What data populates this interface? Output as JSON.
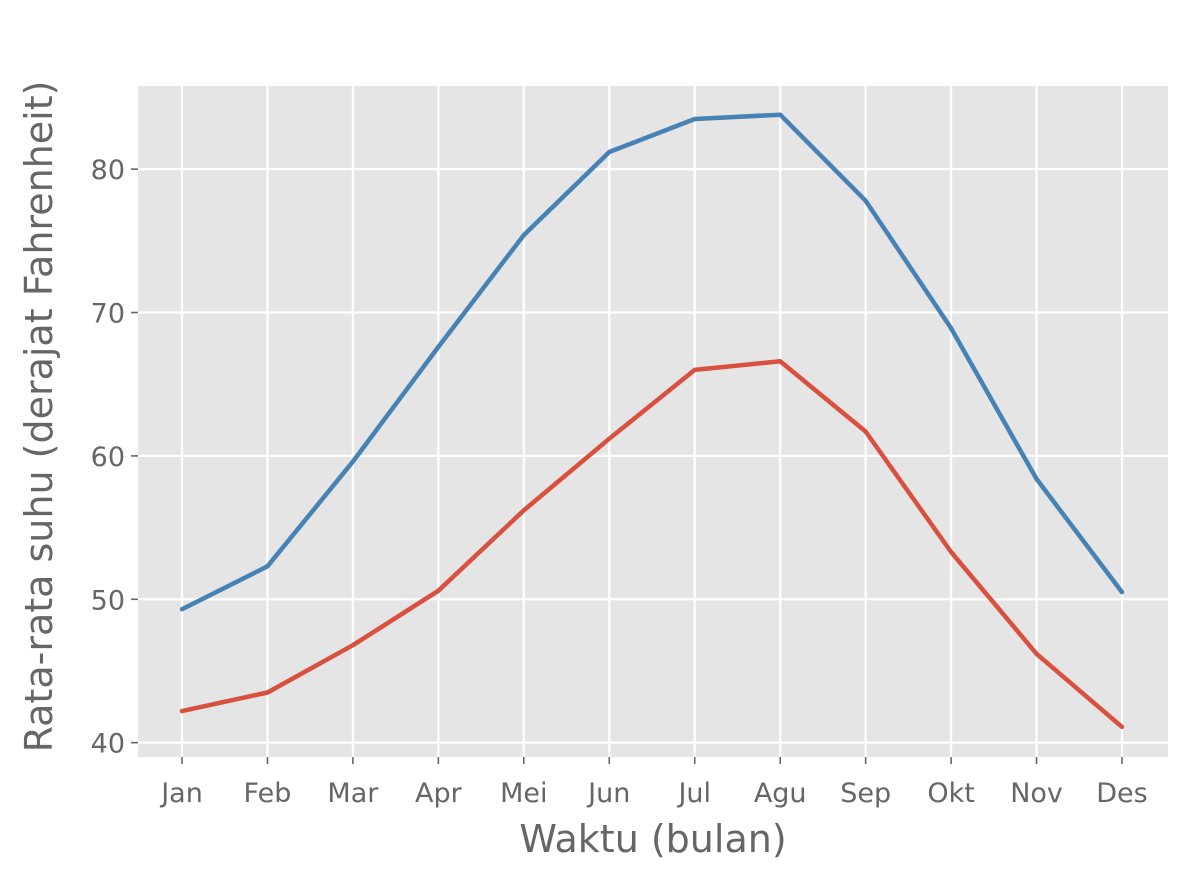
{
  "chart_data": {
    "type": "line",
    "title": "",
    "xlabel": "Waktu (bulan)",
    "ylabel": "Rata-rata suhu (derajat Fahrenheit)",
    "categories": [
      "Jan",
      "Feb",
      "Mar",
      "Apr",
      "Mei",
      "Jun",
      "Jul",
      "Agu",
      "Sep",
      "Okt",
      "Nov",
      "Des"
    ],
    "ylim": [
      39,
      85.8
    ],
    "yticks": [
      40,
      50,
      60,
      70,
      80
    ],
    "grid": true,
    "legend": "none",
    "plot_background": "#e5e5e5",
    "series": [
      {
        "color": "#4682b4",
        "values": [
          49.3,
          52.3,
          59.6,
          67.6,
          75.4,
          81.2,
          83.5,
          83.8,
          77.8,
          68.9,
          58.4,
          50.5
        ]
      },
      {
        "color": "#d9503f",
        "values": [
          42.2,
          43.5,
          46.8,
          50.6,
          56.2,
          61.2,
          66.0,
          66.6,
          61.7,
          53.3,
          46.2,
          41.1
        ]
      }
    ]
  }
}
